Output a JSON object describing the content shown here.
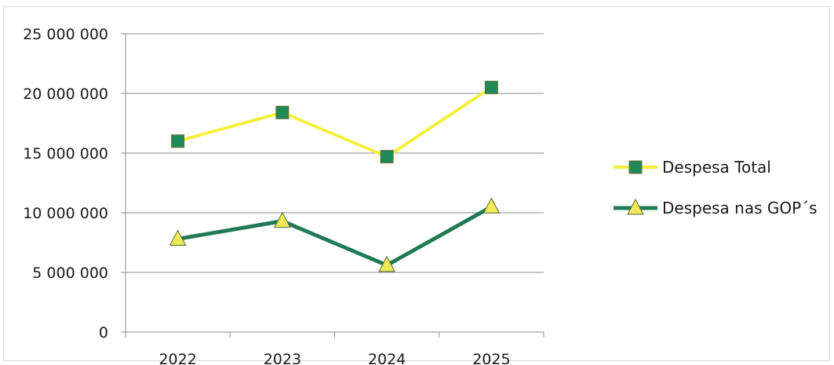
{
  "chart_data": {
    "type": "line",
    "title": "",
    "xlabel": "",
    "ylabel": "",
    "categories": [
      "2022",
      "2023",
      "2024",
      "2025"
    ],
    "ylim": [
      0,
      25000000
    ],
    "yticks": [
      0,
      5000000,
      10000000,
      15000000,
      20000000,
      25000000
    ],
    "ytick_labels": [
      "0",
      "5 000 000",
      "10 000 000",
      "15 000 000",
      "20 000 000",
      "25 000 000"
    ],
    "grid": true,
    "legend_position": "right",
    "series": [
      {
        "name": "Despesa Total",
        "values": [
          16000000,
          18400000,
          14700000,
          20500000
        ],
        "line_color": "#f5ef3c",
        "marker": "square",
        "marker_color": "#1f8a57"
      },
      {
        "name": "Despesa nas GOP´s",
        "values": [
          7800000,
          9300000,
          5600000,
          10500000
        ],
        "line_color": "#217a55",
        "marker": "triangle",
        "marker_color": "#f0ea5a"
      }
    ]
  }
}
